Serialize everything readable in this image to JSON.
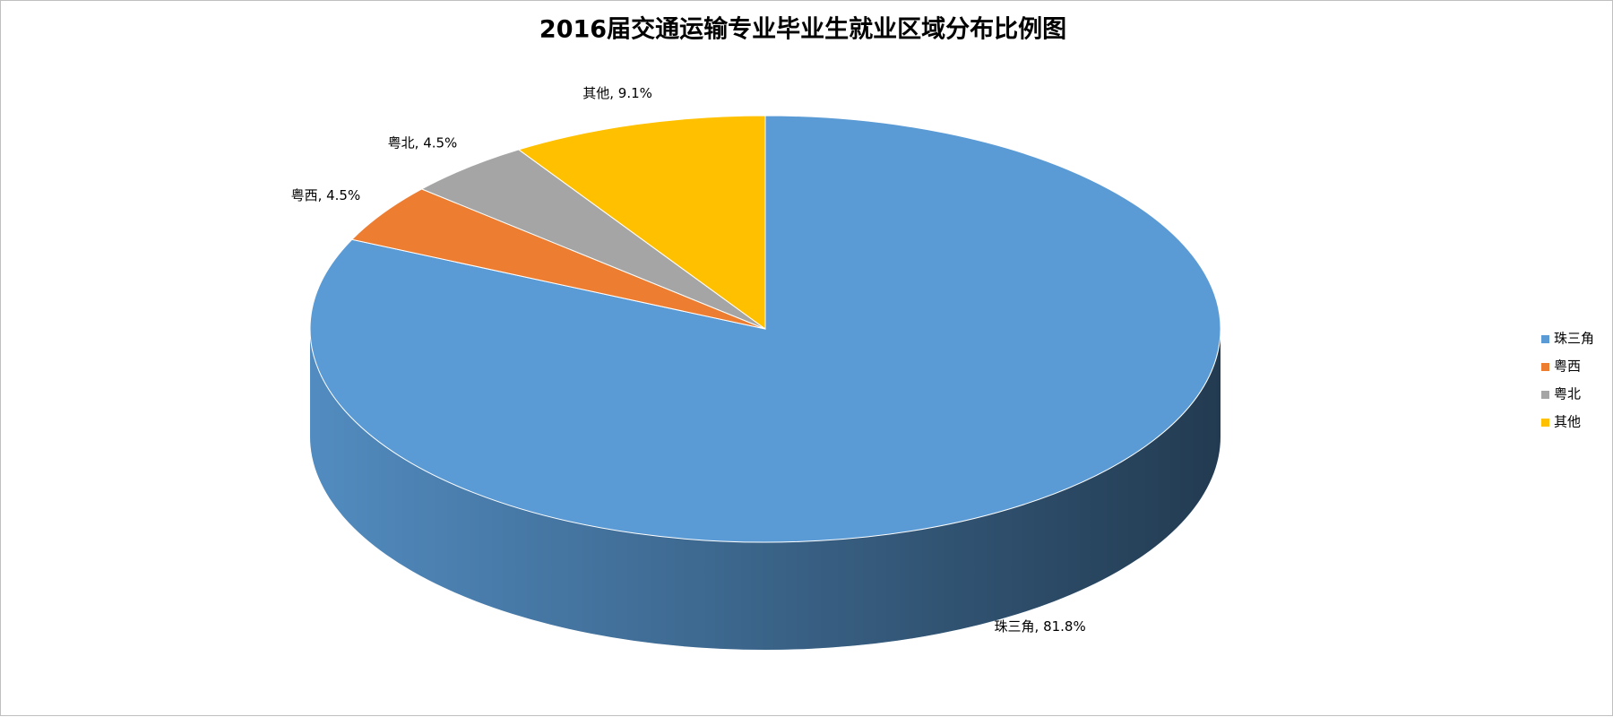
{
  "chart_data": {
    "type": "pie3d",
    "title": "2016届交通运输专业毕业生就业区域分布比例图",
    "categories": [
      "珠三角",
      "粤西",
      "粤北",
      "其他"
    ],
    "values": [
      81.8,
      4.5,
      4.5,
      9.1
    ],
    "value_labels": [
      "珠三角, 81.8%",
      "粤西, 4.5%",
      "粤北, 4.5%",
      "其他, 9.1%"
    ],
    "colors": [
      "#5b9bd5",
      "#ed7d31",
      "#a5a5a5",
      "#ffc000"
    ],
    "legend": "right"
  }
}
